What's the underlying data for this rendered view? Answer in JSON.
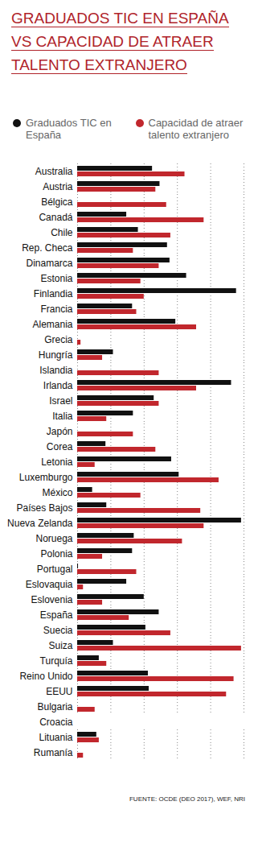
{
  "chart_data": {
    "type": "bar",
    "orientation": "horizontal",
    "title": "Graduados TIC en España vs capacidad de atraer talento extranjero",
    "source": "FUENTE: OCDE (DEO 2017), WEF, NRI",
    "categories": [
      "Australia",
      "Austria",
      "Bélgica",
      "Canadá",
      "Chile",
      "Rep. Checa",
      "Dinamarca",
      "Estonia",
      "Finlandia",
      "Francia",
      "Alemania",
      "Grecia",
      "Hungría",
      "Islandia",
      "Irlanda",
      "Israel",
      "Italia",
      "Japón",
      "Corea",
      "Letonia",
      "Luxemburgo",
      "México",
      "Países Bajos",
      "Nueva Zelanda",
      "Noruega",
      "Polonia",
      "Portugal",
      "Eslovaquia",
      "Eslovenia",
      "España",
      "Suecia",
      "Suiza",
      "Turquía",
      "Reino Unido",
      "EEUU",
      "Bulgaria",
      "Croacia",
      "Lituania",
      "Rumanía"
    ],
    "series": [
      {
        "name": "Graduados TIC en España",
        "color": "#111111",
        "values": [
          45,
          49.5,
          null,
          29.5,
          36.5,
          54,
          55.5,
          65.5,
          95.5,
          33,
          59,
          null,
          21.5,
          null,
          92.5,
          46,
          33.5,
          null,
          17,
          56.5,
          61,
          9,
          17.5,
          98.5,
          34,
          33,
          0.5,
          29.5,
          40,
          49,
          41,
          21.5,
          13,
          42.5,
          43,
          null,
          null,
          11.5,
          null
        ]
      },
      {
        "name": "Capacidad de atraer talento extranjero",
        "color": "#c1272d",
        "values": [
          64.5,
          47,
          53.5,
          76,
          56,
          33.5,
          49,
          38,
          40,
          35.5,
          71.5,
          2,
          15,
          49,
          71.5,
          49,
          17.5,
          33.5,
          47,
          10.5,
          85,
          38,
          74,
          76,
          63,
          15,
          35.5,
          3.5,
          15,
          31,
          56,
          98.5,
          17.5,
          94,
          89.5,
          10.5,
          null,
          13,
          3.5
        ]
      }
    ],
    "xlim": [
      0,
      100
    ],
    "xticks": [
      0,
      20,
      40,
      60,
      80,
      100
    ],
    "grid": true,
    "legend": "top",
    "tick_labels": "y"
  }
}
